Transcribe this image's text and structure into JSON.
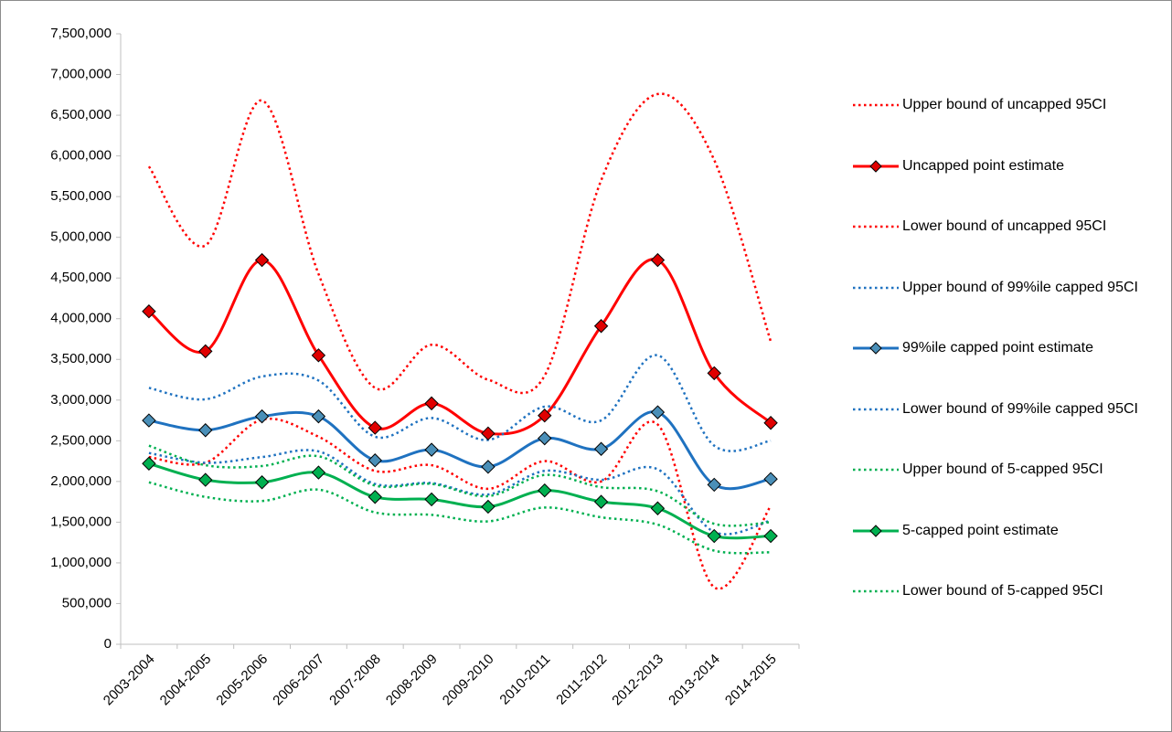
{
  "chart_data": {
    "type": "line",
    "smooth": true,
    "grid": false,
    "categories": [
      "2003-2004",
      "2004-2005",
      "2005-2006",
      "2006-2007",
      "2007-2008",
      "2008-2009",
      "2009-2010",
      "2010-2011",
      "2011-2012",
      "2012-2013",
      "2013-2014",
      "2014-2015"
    ],
    "ylim": [
      0,
      7500000
    ],
    "yticks": [
      0,
      {
        "value": 500000,
        "label": "500,000"
      },
      {
        "value": 1000000,
        "label": "1,000,000"
      },
      {
        "value": 1500000,
        "label": "1,500,000"
      },
      {
        "value": 2000000,
        "label": "2,000,000"
      },
      {
        "value": 2500000,
        "label": "2,500,000"
      },
      {
        "value": 3000000,
        "label": "3,000,000"
      },
      {
        "value": 3500000,
        "label": "3,500,000"
      },
      {
        "value": 4000000,
        "label": "4,000,000"
      },
      {
        "value": 4500000,
        "label": "4,500,000"
      },
      {
        "value": 5000000,
        "label": "5,000,000"
      },
      {
        "value": 5500000,
        "label": "5,500,000"
      },
      {
        "value": 6000000,
        "label": "6,000,000"
      },
      {
        "value": 6500000,
        "label": "6,500,000"
      },
      {
        "value": 7000000,
        "label": "7,000,000"
      },
      {
        "value": 7500000,
        "label": "7,500,000"
      }
    ],
    "series": [
      {
        "name": "Upper bound of uncapped 95CI",
        "color": "#ff0000",
        "style": "dotted",
        "values": [
          5870000,
          4900000,
          6680000,
          4550000,
          3150000,
          3680000,
          3250000,
          3300000,
          5700000,
          6760000,
          5950000,
          3720000
        ]
      },
      {
        "name": "Uncapped point estimate",
        "color": "#ff0000",
        "style": "solid",
        "marker_color": "#e00000",
        "values": [
          4090000,
          3600000,
          4720000,
          3550000,
          2660000,
          2960000,
          2590000,
          2810000,
          3910000,
          4720000,
          3330000,
          2720000
        ]
      },
      {
        "name": "Lower bound of uncapped 95CI",
        "color": "#ff0000",
        "style": "dotted",
        "values": [
          2300000,
          2230000,
          2760000,
          2550000,
          2130000,
          2200000,
          1910000,
          2250000,
          2000000,
          2700000,
          700000,
          1700000
        ]
      },
      {
        "name": "Upper bound of 99%ile capped 95CI",
        "color": "#1f72c0",
        "style": "dotted",
        "values": [
          3150000,
          3010000,
          3290000,
          3240000,
          2550000,
          2780000,
          2510000,
          2920000,
          2750000,
          3550000,
          2440000,
          2500000
        ]
      },
      {
        "name": "99%ile capped point estimate",
        "color": "#1f72c0",
        "style": "solid",
        "marker_color": "#4a8fb8",
        "values": [
          2750000,
          2630000,
          2800000,
          2800000,
          2260000,
          2390000,
          2180000,
          2530000,
          2400000,
          2850000,
          1960000,
          2030000
        ]
      },
      {
        "name": "Lower bound of 99%ile capped 95CI",
        "color": "#1f72c0",
        "style": "dotted",
        "values": [
          2350000,
          2230000,
          2300000,
          2370000,
          1970000,
          1980000,
          1840000,
          2130000,
          2020000,
          2150000,
          1380000,
          1520000
        ]
      },
      {
        "name": "Upper bound of 5-capped 95CI",
        "color": "#00b050",
        "style": "dotted",
        "values": [
          2440000,
          2200000,
          2190000,
          2310000,
          1950000,
          1970000,
          1820000,
          2080000,
          1930000,
          1880000,
          1480000,
          1500000
        ]
      },
      {
        "name": "5-capped point estimate",
        "color": "#00b050",
        "style": "solid",
        "marker_color": "#00b050",
        "values": [
          2220000,
          2020000,
          1990000,
          2110000,
          1810000,
          1780000,
          1690000,
          1890000,
          1750000,
          1670000,
          1330000,
          1330000
        ]
      },
      {
        "name": "Lower bound of 5-capped 95CI",
        "color": "#00b050",
        "style": "dotted",
        "values": [
          1990000,
          1810000,
          1760000,
          1900000,
          1620000,
          1590000,
          1510000,
          1680000,
          1560000,
          1470000,
          1150000,
          1130000
        ]
      }
    ]
  }
}
